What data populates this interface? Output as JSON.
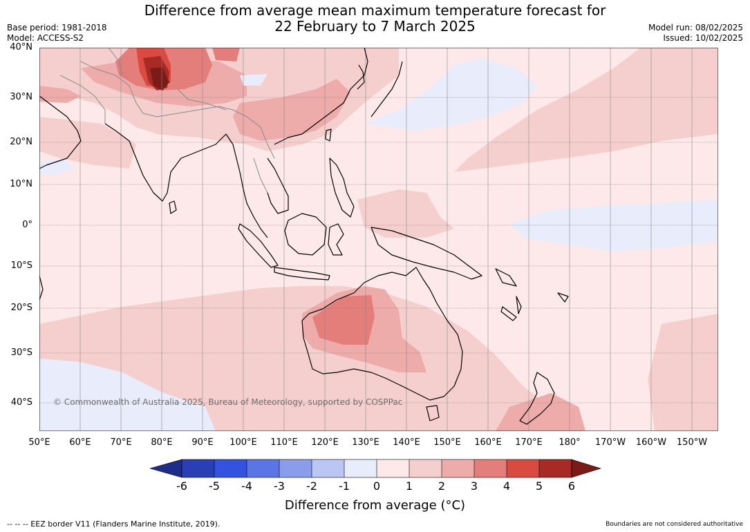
{
  "title": {
    "line1": "Difference from average mean maximum temperature forecast for",
    "line2": "22 February to 7 March 2025"
  },
  "meta": {
    "base_period": "Base period: 1981-2018",
    "model": "Model: ACCESS-S2",
    "model_run": "Model run: 08/02/2025",
    "issued": "Issued: 10/02/2025"
  },
  "map": {
    "lat_labels": [
      "40°N",
      "30°N",
      "20°N",
      "10°N",
      "0°",
      "10°S",
      "20°S",
      "30°S",
      "40°S"
    ],
    "lon_labels": [
      "50°E",
      "60°E",
      "70°E",
      "80°E",
      "90°E",
      "100°E",
      "110°E",
      "120°E",
      "130°E",
      "140°E",
      "150°E",
      "160°E",
      "170°E",
      "180°",
      "170°W",
      "160°W",
      "150°W"
    ],
    "copyright": "© Commonwealth of Australia 2025, Bureau of Meteorology, supported by COSPPac"
  },
  "colorbar": {
    "title": "Difference from average (°C)",
    "tick_labels": [
      "-6",
      "-5",
      "-4",
      "-3",
      "-2",
      "-1",
      "0",
      "1",
      "2",
      "3",
      "4",
      "5",
      "6"
    ],
    "colors": [
      "#1f2d8a",
      "#2a3fb5",
      "#3352e0",
      "#5b74e6",
      "#8a9cec",
      "#bcc6f4",
      "#e8ecfb",
      "#fde9e9",
      "#f5cfce",
      "#edaba9",
      "#e47e7b",
      "#d94a40",
      "#a82a24",
      "#7a1b18"
    ]
  },
  "footer": {
    "eez": "--  --  -- EEZ border V11 (Flanders Marine Institute, 2019).",
    "boundaries": "Boundaries are not considered authoritative"
  }
}
